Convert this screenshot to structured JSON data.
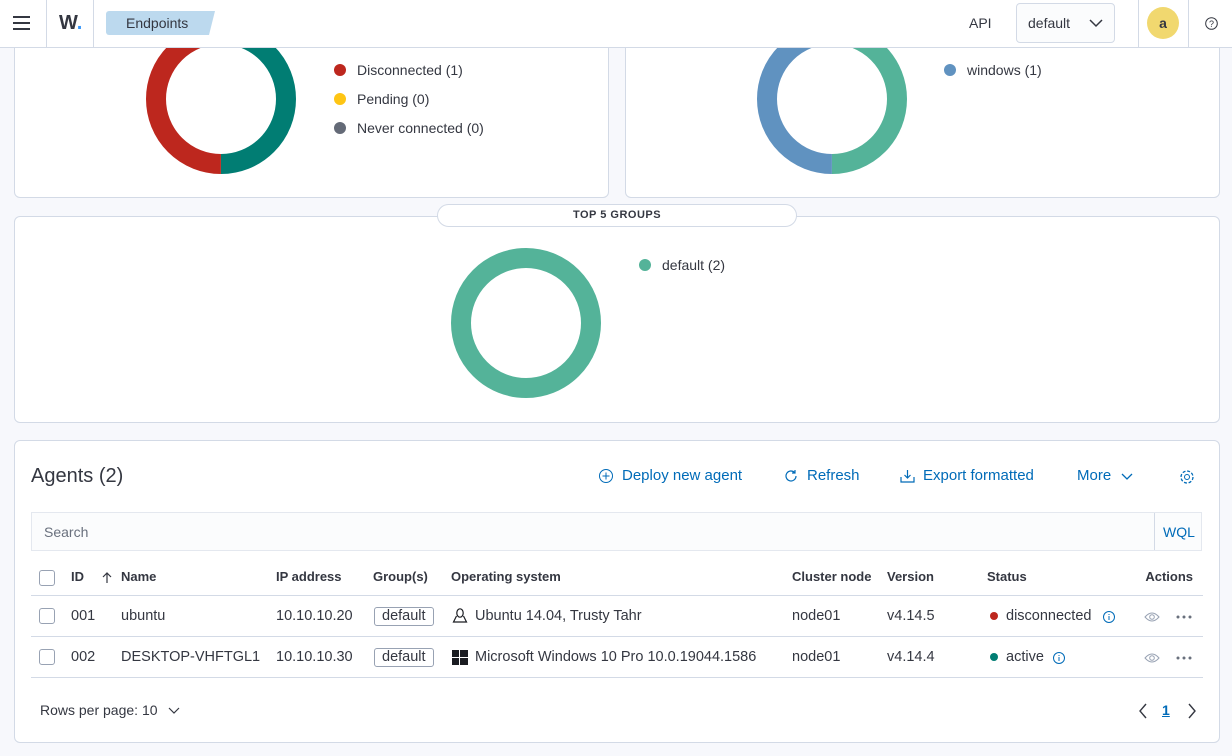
{
  "header": {
    "breadcrumb": "Endpoints",
    "api": "API",
    "select": "default",
    "avatar": "a"
  },
  "charts": [
    {
      "segments": [
        {
          "label": null,
          "value": 1,
          "color": "#017d73"
        },
        {
          "label": "Disconnected (1)",
          "value": 1,
          "color": "#bd271e"
        },
        {
          "label": "Pending (0)",
          "value": 0,
          "color": "#fec514"
        },
        {
          "label": "Never connected (0)",
          "value": 0,
          "color": "#646a77"
        }
      ]
    },
    {
      "segments": [
        {
          "label": null,
          "value": 1,
          "color": "#54b399"
        },
        {
          "label": "windows (1)",
          "value": 1,
          "color": "#6092c0"
        }
      ]
    },
    {
      "title": "TOP 5 GROUPS",
      "segments": [
        {
          "label": "default (2)",
          "value": 2,
          "color": "#54b399"
        }
      ]
    }
  ],
  "agents": {
    "title": "Agents (2)",
    "actions": [
      "Deploy new agent",
      "Refresh",
      "Export formatted",
      "More"
    ],
    "search": "Search",
    "wql": "WQL",
    "columns": [
      "ID",
      "Name",
      "IP address",
      "Group(s)",
      "Operating system",
      "Cluster node",
      "Version",
      "Status",
      "Actions"
    ],
    "rows": [
      {
        "id": "001",
        "name": "ubuntu",
        "ip": "10.10.10.20",
        "group": "default",
        "os": "Ubuntu 14.04, Trusty Tahr",
        "cluster": "node01",
        "version": "v4.14.5",
        "status": "disconnected",
        "status_color": "#bd271e"
      },
      {
        "id": "002",
        "name": "DESKTOP-VHFTGL1",
        "ip": "10.10.10.30",
        "group": "default",
        "os": "Microsoft Windows 10 Pro 10.0.19044.1586",
        "cluster": "node01",
        "version": "v4.14.4",
        "status": "active",
        "status_color": "#017d73"
      }
    ],
    "rows_per_page": "Rows per page: 10",
    "page": "1"
  }
}
